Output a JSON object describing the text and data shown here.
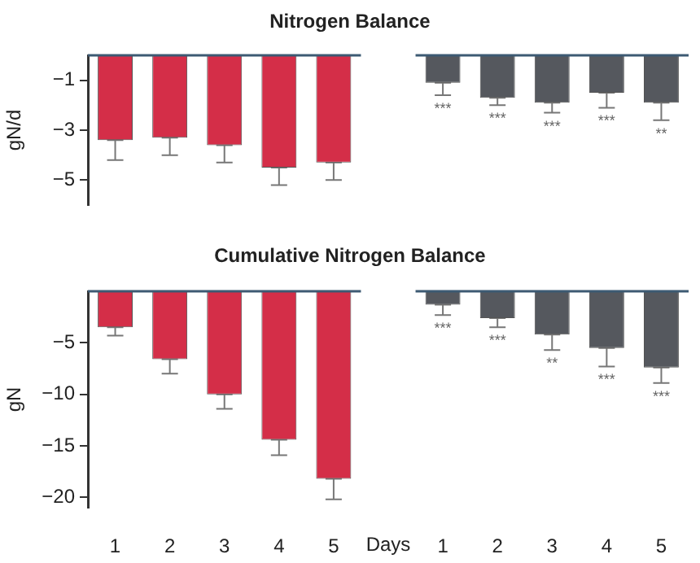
{
  "chart_data": [
    {
      "type": "bar",
      "title": "Nitrogen Balance",
      "ylabel": "gN/d",
      "categories": [
        "1",
        "2",
        "3",
        "4",
        "5",
        null,
        "1",
        "2",
        "3",
        "4",
        "5"
      ],
      "ylim": [
        -6,
        0
      ],
      "yticks": [
        -1,
        -3,
        -5
      ],
      "tick_labels": "y",
      "series": [
        {
          "color": "#d42e48",
          "values": [
            -3.4,
            -3.3,
            -3.6,
            -4.5,
            -4.3,
            null,
            null,
            null,
            null,
            null,
            null
          ],
          "errors": [
            [
              -4.2,
              -3.4
            ],
            [
              -4.0,
              -3.3
            ],
            [
              -4.3,
              -3.6
            ],
            [
              -5.2,
              -4.5
            ],
            [
              -5.0,
              -4.3
            ],
            null,
            null,
            null,
            null,
            null,
            null
          ]
        },
        {
          "color": "#55585e",
          "values": [
            null,
            null,
            null,
            null,
            null,
            null,
            -1.1,
            -1.7,
            -1.9,
            -1.5,
            -1.9
          ],
          "value_labels": [
            null,
            null,
            null,
            null,
            null,
            null,
            "***",
            "***",
            "***",
            "***",
            "**"
          ],
          "errors": [
            null,
            null,
            null,
            null,
            null,
            null,
            [
              -1.6,
              -1.1
            ],
            [
              -2.0,
              -1.7
            ],
            [
              -2.3,
              -1.9
            ],
            [
              -2.1,
              -1.5
            ],
            [
              -2.6,
              -1.9
            ]
          ]
        }
      ]
    },
    {
      "type": "bar",
      "title": "Cumulative Nitrogen Balance",
      "ylabel": "gN",
      "xlabel": "Days",
      "categories": [
        "1",
        "2",
        "3",
        "4",
        "5",
        null,
        "1",
        "2",
        "3",
        "4",
        "5"
      ],
      "ylim": [
        -21,
        0
      ],
      "yticks": [
        -5,
        -10,
        -15,
        -20
      ],
      "series": [
        {
          "color": "#d42e48",
          "values": [
            -3.5,
            -6.6,
            -10.0,
            -14.4,
            -18.2,
            null,
            null,
            null,
            null,
            null,
            null
          ],
          "errors": [
            [
              -4.3,
              -3.5
            ],
            [
              -8.0,
              -6.6
            ],
            [
              -11.4,
              -10.0
            ],
            [
              -15.9,
              -14.4
            ],
            [
              -20.2,
              -18.2
            ],
            null,
            null,
            null,
            null,
            null,
            null
          ]
        },
        {
          "color": "#55585e",
          "values": [
            null,
            null,
            null,
            null,
            null,
            null,
            -1.3,
            -2.6,
            -4.2,
            -5.5,
            -7.4
          ],
          "value_labels": [
            null,
            null,
            null,
            null,
            null,
            null,
            "***",
            "***",
            "**",
            "***",
            "***"
          ],
          "errors": [
            null,
            null,
            null,
            null,
            null,
            null,
            [
              -2.3,
              -1.3
            ],
            [
              -3.5,
              -2.6
            ],
            [
              -5.7,
              -4.2
            ],
            [
              -7.3,
              -5.5
            ],
            [
              -8.9,
              -7.4
            ]
          ]
        }
      ]
    }
  ]
}
